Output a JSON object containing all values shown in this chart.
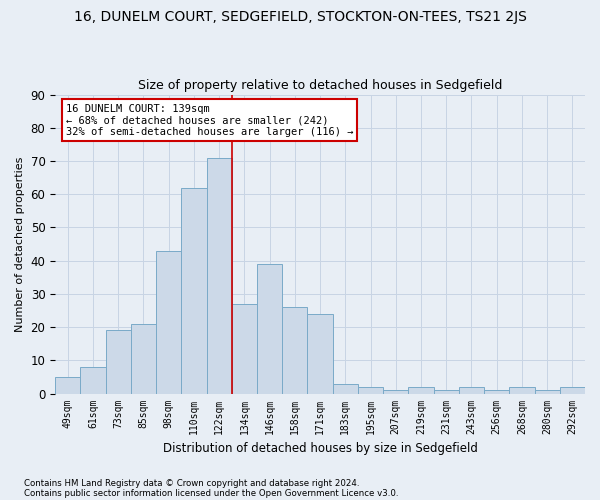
{
  "title": "16, DUNELM COURT, SEDGEFIELD, STOCKTON-ON-TEES, TS21 2JS",
  "subtitle": "Size of property relative to detached houses in Sedgefield",
  "xlabel": "Distribution of detached houses by size in Sedgefield",
  "ylabel": "Number of detached properties",
  "categories": [
    "49sqm",
    "61sqm",
    "73sqm",
    "85sqm",
    "98sqm",
    "110sqm",
    "122sqm",
    "134sqm",
    "146sqm",
    "158sqm",
    "171sqm",
    "183sqm",
    "195sqm",
    "207sqm",
    "219sqm",
    "231sqm",
    "243sqm",
    "256sqm",
    "268sqm",
    "280sqm",
    "292sqm"
  ],
  "values": [
    5,
    8,
    19,
    21,
    43,
    62,
    71,
    27,
    39,
    26,
    24,
    3,
    2,
    1,
    2,
    1,
    2,
    1,
    2,
    1,
    2
  ],
  "bar_color": "#ccd9e8",
  "bar_edge_color": "#7aaac8",
  "vline_x_index": 7,
  "vline_color": "#cc0000",
  "annotation_line1": "16 DUNELM COURT: 139sqm",
  "annotation_line2": "← 68% of detached houses are smaller (242)",
  "annotation_line3": "32% of semi-detached houses are larger (116) →",
  "annotation_box_facecolor": "#ffffff",
  "annotation_box_edgecolor": "#cc0000",
  "ylim": [
    0,
    90
  ],
  "yticks": [
    0,
    10,
    20,
    30,
    40,
    50,
    60,
    70,
    80,
    90
  ],
  "grid_color": "#c8d4e4",
  "background_color": "#e8eef5",
  "title_fontsize": 10,
  "subtitle_fontsize": 9,
  "footer1": "Contains HM Land Registry data © Crown copyright and database right 2024.",
  "footer2": "Contains public sector information licensed under the Open Government Licence v3.0."
}
